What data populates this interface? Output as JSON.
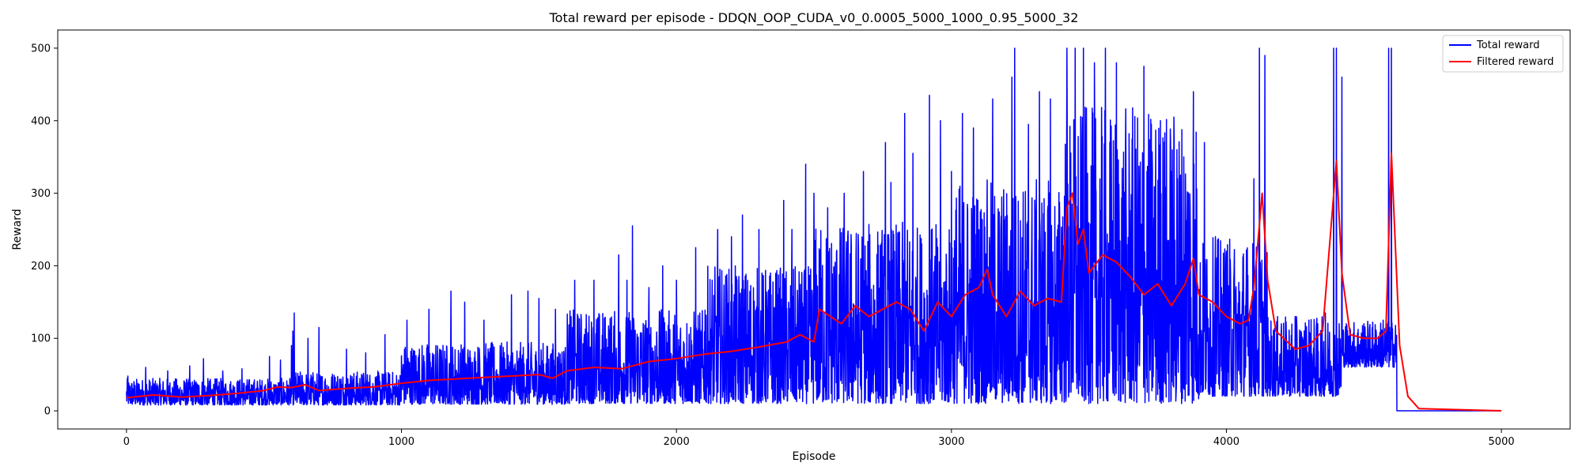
{
  "chart_data": {
    "type": "line",
    "title": "Total reward per episode - DDQN_OOP_CUDA_v0_0.0005_5000_1000_0.95_5000_32",
    "xlabel": "Episode",
    "ylabel": "Reward",
    "xlim": [
      -250,
      5250
    ],
    "ylim": [
      -25,
      525
    ],
    "xticks": [
      0,
      1000,
      2000,
      3000,
      4000,
      5000
    ],
    "yticks": [
      0,
      100,
      200,
      300,
      400,
      500
    ],
    "grid": false,
    "legend_position": "top-right",
    "series": [
      {
        "name": "Total reward",
        "color": "#0000ff",
        "segments": [
          {
            "x_start": 0,
            "x_end": 600,
            "low": 8,
            "high": 45,
            "peaks": [
              [
                5,
                48
              ],
              [
                70,
                60
              ],
              [
                150,
                55
              ],
              [
                230,
                62
              ],
              [
                280,
                72
              ],
              [
                350,
                55
              ],
              [
                420,
                58
              ],
              [
                520,
                75
              ],
              [
                560,
                70
              ],
              [
                600,
                90
              ]
            ]
          },
          {
            "x_start": 600,
            "x_end": 1000,
            "low": 8,
            "high": 55,
            "peaks": [
              [
                605,
                110
              ],
              [
                610,
                135
              ],
              [
                660,
                100
              ],
              [
                700,
                115
              ],
              [
                800,
                85
              ],
              [
                870,
                80
              ],
              [
                940,
                105
              ]
            ]
          },
          {
            "x_start": 1000,
            "x_end": 1600,
            "low": 9,
            "high": 95,
            "peaks": [
              [
                1020,
                125
              ],
              [
                1100,
                140
              ],
              [
                1180,
                165
              ],
              [
                1230,
                150
              ],
              [
                1300,
                125
              ],
              [
                1400,
                160
              ],
              [
                1460,
                165
              ],
              [
                1500,
                155
              ],
              [
                1560,
                140
              ]
            ]
          },
          {
            "x_start": 1600,
            "x_end": 2100,
            "low": 10,
            "high": 140,
            "peaks": [
              [
                1630,
                180
              ],
              [
                1700,
                180
              ],
              [
                1790,
                215
              ],
              [
                1820,
                180
              ],
              [
                1840,
                255
              ],
              [
                1900,
                170
              ],
              [
                1950,
                200
              ],
              [
                2000,
                180
              ],
              [
                2070,
                225
              ]
            ]
          },
          {
            "x_start": 2100,
            "x_end": 2500,
            "low": 10,
            "high": 200,
            "peaks": [
              [
                2150,
                250
              ],
              [
                2200,
                240
              ],
              [
                2240,
                270
              ],
              [
                2300,
                250
              ],
              [
                2390,
                290
              ],
              [
                2420,
                250
              ],
              [
                2470,
                340
              ],
              [
                2500,
                300
              ]
            ]
          },
          {
            "x_start": 2500,
            "x_end": 3000,
            "low": 10,
            "high": 260,
            "peaks": [
              [
                2550,
                280
              ],
              [
                2610,
                300
              ],
              [
                2680,
                330
              ],
              [
                2760,
                370
              ],
              [
                2780,
                315
              ],
              [
                2830,
                410
              ],
              [
                2860,
                355
              ],
              [
                2920,
                435
              ],
              [
                2960,
                400
              ],
              [
                3000,
                330
              ]
            ]
          },
          {
            "x_start": 3000,
            "x_end": 3400,
            "low": 10,
            "high": 320,
            "peaks": [
              [
                3040,
                410
              ],
              [
                3080,
                390
              ],
              [
                3150,
                430
              ],
              [
                3220,
                460
              ],
              [
                3230,
                500
              ],
              [
                3280,
                395
              ],
              [
                3320,
                440
              ],
              [
                3360,
                430
              ]
            ]
          },
          {
            "x_start": 3400,
            "x_end": 3900,
            "low": 10,
            "high": 420,
            "peaks": [
              [
                3420,
                500
              ],
              [
                3450,
                500
              ],
              [
                3480,
                500
              ],
              [
                3520,
                480
              ],
              [
                3560,
                500
              ],
              [
                3600,
                480
              ],
              [
                3700,
                475
              ],
              [
                3760,
                400
              ],
              [
                3820,
                360
              ],
              [
                3880,
                440
              ]
            ]
          },
          {
            "x_start": 3900,
            "x_end": 4150,
            "low": 20,
            "high": 240,
            "peaks": [
              [
                3920,
                370
              ],
              [
                3960,
                240
              ],
              [
                4000,
                220
              ],
              [
                4100,
                320
              ],
              [
                4120,
                500
              ],
              [
                4140,
                490
              ]
            ]
          },
          {
            "x_start": 4150,
            "x_end": 4420,
            "low": 20,
            "high": 130,
            "peaks": [
              [
                4200,
                120
              ],
              [
                4250,
                130
              ],
              [
                4300,
                125
              ],
              [
                4360,
                135
              ],
              [
                4390,
                500
              ],
              [
                4400,
                500
              ],
              [
                4420,
                460
              ]
            ]
          },
          {
            "x_start": 4420,
            "x_end": 4620,
            "low": 60,
            "high": 125,
            "peaks": [
              [
                4500,
                120
              ],
              [
                4570,
                125
              ],
              [
                4590,
                500
              ],
              [
                4600,
                500
              ]
            ]
          },
          {
            "x_start": 4620,
            "x_end": 5000,
            "low": 0,
            "high": 0,
            "peaks": []
          }
        ]
      },
      {
        "name": "Filtered reward",
        "color": "#ff0000",
        "points": [
          [
            0,
            18
          ],
          [
            100,
            22
          ],
          [
            200,
            19
          ],
          [
            300,
            21
          ],
          [
            400,
            24
          ],
          [
            500,
            28
          ],
          [
            550,
            33
          ],
          [
            600,
            32
          ],
          [
            650,
            36
          ],
          [
            700,
            28
          ],
          [
            800,
            31
          ],
          [
            900,
            33
          ],
          [
            1000,
            38
          ],
          [
            1100,
            42
          ],
          [
            1200,
            44
          ],
          [
            1300,
            46
          ],
          [
            1400,
            48
          ],
          [
            1500,
            50
          ],
          [
            1550,
            45
          ],
          [
            1600,
            55
          ],
          [
            1700,
            60
          ],
          [
            1800,
            58
          ],
          [
            1900,
            68
          ],
          [
            2000,
            72
          ],
          [
            2100,
            78
          ],
          [
            2200,
            82
          ],
          [
            2300,
            88
          ],
          [
            2400,
            95
          ],
          [
            2450,
            105
          ],
          [
            2500,
            95
          ],
          [
            2520,
            140
          ],
          [
            2600,
            120
          ],
          [
            2650,
            145
          ],
          [
            2700,
            130
          ],
          [
            2800,
            150
          ],
          [
            2850,
            140
          ],
          [
            2900,
            110
          ],
          [
            2950,
            150
          ],
          [
            3000,
            130
          ],
          [
            3050,
            160
          ],
          [
            3100,
            170
          ],
          [
            3130,
            195
          ],
          [
            3150,
            160
          ],
          [
            3200,
            130
          ],
          [
            3250,
            165
          ],
          [
            3300,
            145
          ],
          [
            3350,
            155
          ],
          [
            3400,
            150
          ],
          [
            3420,
            280
          ],
          [
            3440,
            300
          ],
          [
            3460,
            230
          ],
          [
            3480,
            250
          ],
          [
            3500,
            190
          ],
          [
            3550,
            215
          ],
          [
            3600,
            205
          ],
          [
            3650,
            185
          ],
          [
            3700,
            160
          ],
          [
            3750,
            175
          ],
          [
            3800,
            145
          ],
          [
            3850,
            175
          ],
          [
            3880,
            210
          ],
          [
            3900,
            160
          ],
          [
            3950,
            150
          ],
          [
            4000,
            130
          ],
          [
            4050,
            120
          ],
          [
            4080,
            125
          ],
          [
            4100,
            170
          ],
          [
            4130,
            300
          ],
          [
            4150,
            180
          ],
          [
            4180,
            110
          ],
          [
            4250,
            85
          ],
          [
            4300,
            90
          ],
          [
            4350,
            110
          ],
          [
            4400,
            345
          ],
          [
            4420,
            190
          ],
          [
            4450,
            105
          ],
          [
            4500,
            100
          ],
          [
            4550,
            100
          ],
          [
            4580,
            110
          ],
          [
            4600,
            355
          ],
          [
            4630,
            90
          ],
          [
            4660,
            20
          ],
          [
            4700,
            3
          ],
          [
            5000,
            0
          ]
        ]
      }
    ]
  }
}
